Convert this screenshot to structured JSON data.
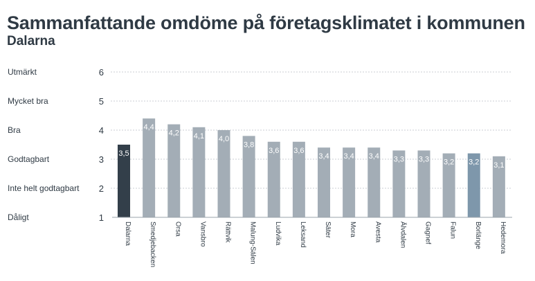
{
  "title": "Sammanfattande omdöme på företagsklimatet i kommunen",
  "subtitle": "Dalarna",
  "chart_data": {
    "type": "bar",
    "title": "Sammanfattande omdöme på företagsklimatet i kommunen",
    "subtitle": "Dalarna",
    "categories": [
      "Dalarna",
      "Smedjebacken",
      "Orsa",
      "Vansbro",
      "Rättvik",
      "Malung-Sälen",
      "Ludvika",
      "Leksand",
      "Säter",
      "Mora",
      "Avesta",
      "Älvdalen",
      "Gagnef",
      "Falun",
      "Borlänge",
      "Hedemora"
    ],
    "values": [
      3.5,
      4.4,
      4.2,
      4.1,
      4.0,
      3.8,
      3.6,
      3.6,
      3.4,
      3.4,
      3.4,
      3.3,
      3.3,
      3.2,
      3.2,
      3.1
    ],
    "value_labels": [
      "3,5",
      "4,4",
      "4,2",
      "4,1",
      "4,0",
      "3,8",
      "3,6",
      "3,6",
      "3,4",
      "3,4",
      "3,4",
      "3,3",
      "3,3",
      "3,2",
      "3,2",
      "3,1"
    ],
    "ylim": [
      1,
      6
    ],
    "yticks": [
      1,
      2,
      3,
      4,
      5,
      6
    ],
    "scale_labels": [
      "Dåligt",
      "Inte helt godtagbart",
      "Godtagbart",
      "Bra",
      "Mycket bra",
      "Utmärkt"
    ],
    "grid": true,
    "colors": {
      "default": "#a3adb6",
      "highlight_region": "#333f4a",
      "highlight_municipality": "#7e97ab"
    },
    "bar_colors": [
      "highlight_region",
      "default",
      "default",
      "default",
      "default",
      "default",
      "default",
      "default",
      "default",
      "default",
      "default",
      "default",
      "default",
      "default",
      "highlight_municipality",
      "default"
    ]
  }
}
